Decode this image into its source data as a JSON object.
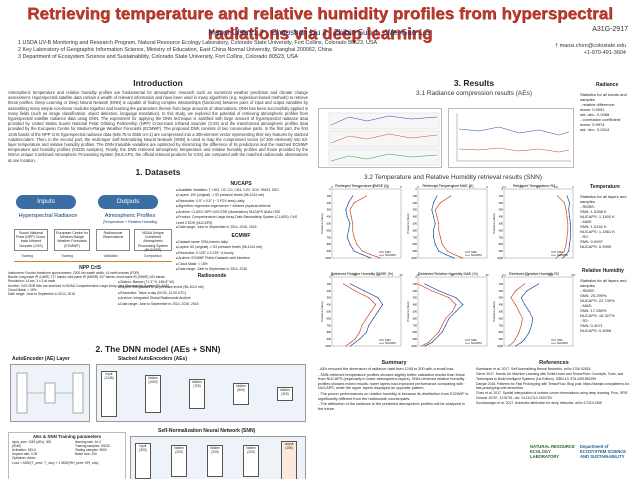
{
  "header": {
    "title": "Retrieving temperature and relative humidity profiles from hyperspectral radiations via deep learning",
    "poster_id": "A31G-2917",
    "authors": "Maosi Chen 1,† , Chaoshun Liu 2 , Zhibin Sun 1 , Wei Gao 1,3",
    "affiliations": [
      "1 USDA UV-B Monitoring and Research Program, Natural Resource Ecology Laboratory, Colorado State University, Fort Collins, Colorado 80523, USA",
      "2 Key Laboratory of Geographic Information Science, Ministry of Education, East China Normal University, Shanghai 200062, China",
      "3 Department of Ecosystem Science and Sustainability, Colorado State University, Fort Collins, Colorado 80523, USA"
    ],
    "contact_email": "† maosi.chen@colostate.edu",
    "contact_phone": "+1-970-491-3604"
  },
  "intro": {
    "title": "Introduction",
    "text": "Atmospheric temperature and relative humidity profiles are fundamental for atmospheric research such as numerical weather prediction and climate change assessment. Hyperspectral satellite data contain a wealth of relevant information and have been used in many algorithms (e.g. regression-based methods) to retrieve these profiles. Deep Learning or Deep Neural Network (DNN) is capable of finding complex relationships (functions) between pairs of input and output variables by assembling many simple non-linear modules together and learning the parameters therein from large amounts of observations. DNN has been successfully applied in many fields (such as image classification, object detection, language translation). In this study, we explored the potential of retrieving atmospheric profiles from hyperspectral satellite radiance data using DNN. The experiment for applying the DNN technique is satisfied with large amount of hyperspectral radiance data provided by United States Suomi National Polar Orbiting Partnership (NPP) Cross-track Infrared Sounder (CrIS) and the transformed atmospheric profiles data provided by the European Centre for Medium-Range Weather Forecasts (ECMWF). The proposed DNN consists of two consecutive parts. In the first part, the first 1245 bands of the NPP CrIS hyperspectral radiance data (648.75 to 2555 cm-1) are compressed into a 300-element vector representing their key features by stacked AutoEncoders. Then, in the second part, the multi-layer Self-Normalizing Neural Network (SNN) is used to map the compressed vector (of 300 elements) into 53-layer temperature and relative humidity profiles. The DNN trainable variables are optimized by minimizing the difference of its predictions and the matched ECMWF temperature and humidity profiles (53230 samples). Finally, the DNN retrieved atmospheric temperature and relative humidity profiles and those provided by the NOAA Unique Combined Atmospheric Processing System (NUCAPS, the official retrieval products for CrIS) are compared with the matched radiosonde observations at one location."
  },
  "datasets": {
    "title": "1. Datasets",
    "inputs_label": "Inputs",
    "outputs_label": "Outputs",
    "hyper_label": "Hyperspectral Radiance",
    "atmos_label": "Atmospheric Profiles",
    "atmos_sub": "(Temperature + Relative Humidity)",
    "boxes": [
      "Suomi National Polar (NPP) Cross-track Infrared Sounder (CrIS)",
      "European Centre for Medium-Range Weather Forecasts (ECMWF)",
      "Radiosonde Observations",
      "NOAA Unique Combined Atmospheric Processing System (NUCAPS)"
    ],
    "flow_labels": [
      "Training",
      "Training",
      "Validation",
      "Comparison"
    ],
    "npp_title": "NPP CrIS",
    "npp_items": [
      "Instrument: Fourier-transform spectrometer; 2200 km swath width; 14 earth scenes (FOR)",
      "Bands: long-wave IR (LWIR) 717 bands; mid-wave IR (MWIR) 437 bands; short-wave IR (SWIR) 163 bands",
      "Resolution: 14 km, 3 x 3 at nadir",
      "Archive: CrIS SDR files are archived in NOAA Comprehensive Large Array-data Stewardship System (CLASS)",
      "Cloud Mask: < 15%",
      "Date range: June to September in 2014, 2015"
    ],
    "nucaps_title": "NUCAPS",
    "nucaps_items": [
      "Available Variables: T, H2O, O3, CO, CH4, CO2, SO2, HNO3, N2O",
      "Layers: 100 (original) -> 53 pressure levels (96-1014 mb)",
      "Resolution: 0.5° x 0.5° (~ 3 FOV area); daily",
      "Algorithm: regression eigenvector + infrared physical retrieval",
      "Archive: CLASS: NPP-CrIS EDR (dissertation) NUCAPS ANALYSIS",
      "Product: Comprehensive Large Array-Data Stewardship System (CLASS): CrIS Level 2 EDR (NUCAPS)",
      "Date range: June to September in 2014, 2015, 2016"
    ],
    "ecmwf_title": "ECMWF",
    "ecmwf_items": [
      "Dataset name: ERA-Interim daily",
      "Layers: 60 (original) -> 53 pressure levels (96-1014 mb)",
      "Resolution: 0.125° x 0.125°; 6-hourly",
      "Archive: ECMWF Public Datasets web interface",
      "Cloud Mask: < 15%",
      "Date range: June to September in 2014, 2015"
    ],
    "radiosonde_title": "Radiosonde",
    "radiosonde_items": [
      "Station: Barrow (71.3° N, 156.8° W)",
      "Layers: interpolated to 53 pressure levels (96-1014 mb)",
      "Resolution: Twice a day (00:00, 12:00 UTC)",
      "Archive: Integrated Global Radiosonde Archive",
      "Date range: June to September in 2014, 2015, 2016"
    ]
  },
  "dnn": {
    "title": "2. The DNN model (AEs + SNN)",
    "ae_title": "AutoEncoder (AE) Layer",
    "sae_title": "Stacked AutoEncoders (AEs)",
    "snn_title": "Self-Normalization Neural Network (SNN)",
    "train_title": "AEs & SNN Training parameters",
    "train_items": [
      "input_size: 1245 (AEs), 300 (SNN)",
      "Activation: SELU",
      "dropout rate: 0.05",
      "Optimizer: Adam",
      "learning rate: 1e-3",
      "Training samples: 53230",
      "Testing samples: 5000",
      "Batch size: 200"
    ],
    "sae_nodes": [
      "input (1245)",
      "hidden (1000)",
      "hidden (700)",
      "hidden (500)",
      "hidden (300)"
    ],
    "snn_nodes": [
      "input (300)",
      "hidden (200)",
      "hidden (200)",
      "hidden (200)",
      "output (106)"
    ],
    "loss_text": "Loss = MSE(T_pred, T_obs) + λ MSE(RH_pred, RH_obs)"
  },
  "results": {
    "title": "3. Results",
    "s31": "3.1 Radiance compression results (AEs)",
    "s32": "3.2 Temperature and Relative Humidity retrieval results (SNN)",
    "radiance_head": "Radiance",
    "radiance_stats": [
      "Statistics for all bands and samples",
      "- relative difference:",
      "  mean: 0.0051",
      "  std. dev.: 0.0068",
      "- correlation coefficient:",
      "  mean: 0.9974",
      "  std. dev.: 0.0014"
    ],
    "temp_head": "Temperature",
    "temp_stats": [
      "Statistics for all layers and samples",
      "- RMSE:",
      "  SNN: 1.5358 K",
      "  NUCAPS: 1.1160 K",
      "- MAE:",
      "  SNN: 1.0162 K",
      "  NUCAPS: 1.1561 K",
      "- R2:",
      "  SNN: 0.9997",
      "  NUCAPS: 0.9990"
    ],
    "rh_head": "Relative Humidity",
    "rh_stats": [
      "Statistics for all layers and samples",
      "- RMSE:",
      "  SNN: 25.299%",
      "  NUCAPS: 22.749%",
      "- MAE:",
      "  SNN: 17.289%",
      "  NUCAPS: 16.327%",
      "- R2:",
      "  SNN: 0.4071",
      "  NUCAPS: 0.3096"
    ],
    "chart_titles": [
      "Retrieved Temperature RMSE (K)",
      "Retrieved Temperature MAE (K)",
      "Retrieved Temperature R2",
      "Retrieved Relative Humidity RMSE (%)",
      "Retrieved Relative Humidity MAE (%)",
      "Retrieved Relative Humidity R2"
    ],
    "ylabel": "Pressure (mbar)",
    "legend_snn": "SNN",
    "legend_nucaps": "NUCAPS"
  },
  "chart_data": [
    {
      "type": "line",
      "title": "Retrieved Temperature RMSE (K)",
      "ylabel": "Pressure (mbar)",
      "yticks": [
        0,
        100,
        200,
        300,
        400,
        500,
        600,
        700,
        800,
        900,
        1000
      ],
      "xticks": [
        0,
        1,
        2,
        3,
        4,
        5
      ],
      "series": [
        {
          "name": "SNN",
          "x": [
            1.5,
            1.2,
            1.0,
            1.1,
            1.3,
            1.2,
            1.1,
            1.3,
            1.6,
            2.2,
            2.8
          ],
          "y": [
            100,
            200,
            300,
            400,
            500,
            600,
            700,
            800,
            900,
            950,
            1000
          ]
        },
        {
          "name": "NUCAPS",
          "x": [
            2.5,
            1.6,
            1.3,
            1.4,
            1.5,
            1.5,
            1.6,
            1.8,
            2.2,
            2.8,
            3.5
          ],
          "y": [
            100,
            200,
            300,
            400,
            500,
            600,
            700,
            800,
            900,
            950,
            1000
          ]
        }
      ]
    },
    {
      "type": "line",
      "title": "Retrieved Temperature MAE (K)",
      "ylabel": "Pressure (mbar)",
      "yticks": [
        0,
        100,
        200,
        300,
        400,
        500,
        600,
        700,
        800,
        900,
        1000
      ],
      "xticks": [
        0,
        1,
        2,
        3,
        4
      ],
      "series": [
        {
          "name": "SNN",
          "x": [
            1.1,
            0.9,
            0.8,
            0.9,
            1.0,
            0.9,
            0.9,
            1.0,
            1.2,
            1.6,
            2.1
          ],
          "y": [
            100,
            200,
            300,
            400,
            500,
            600,
            700,
            800,
            900,
            950,
            1000
          ]
        },
        {
          "name": "NUCAPS",
          "x": [
            1.9,
            1.3,
            1.0,
            1.1,
            1.2,
            1.2,
            1.3,
            1.4,
            1.7,
            2.1,
            2.6
          ],
          "y": [
            100,
            200,
            300,
            400,
            500,
            600,
            700,
            800,
            900,
            950,
            1000
          ]
        }
      ]
    },
    {
      "type": "line",
      "title": "Retrieved Temperature R2",
      "ylabel": "Pressure (mbar)",
      "yticks": [
        0,
        100,
        200,
        300,
        400,
        500,
        600,
        700,
        800,
        900,
        1000
      ],
      "xticks": [
        0.2,
        0.4,
        0.6,
        0.8,
        1.0
      ],
      "series": [
        {
          "name": "SNN",
          "x": [
            0.93,
            0.96,
            0.95,
            0.96,
            0.97,
            0.97,
            0.97,
            0.96,
            0.95,
            0.92,
            0.88
          ],
          "y": [
            100,
            200,
            300,
            400,
            500,
            600,
            700,
            800,
            900,
            950,
            1000
          ]
        },
        {
          "name": "NUCAPS",
          "x": [
            0.82,
            0.9,
            0.92,
            0.93,
            0.94,
            0.94,
            0.93,
            0.92,
            0.9,
            0.86,
            0.8
          ],
          "y": [
            100,
            200,
            300,
            400,
            500,
            600,
            700,
            800,
            900,
            950,
            1000
          ]
        }
      ]
    },
    {
      "type": "line",
      "title": "Retrieved Relative Humidity RMSE (%)",
      "ylabel": "Pressure (mbar)",
      "yticks": [
        0,
        100,
        200,
        300,
        400,
        500,
        600,
        700,
        800,
        900,
        1000
      ],
      "xticks": [
        10,
        20,
        30,
        40
      ],
      "series": [
        {
          "name": "SNN",
          "x": [
            18,
            24,
            30,
            32,
            30,
            28,
            26,
            25,
            22,
            20,
            18
          ],
          "y": [
            100,
            200,
            300,
            400,
            500,
            600,
            700,
            800,
            900,
            950,
            1000
          ]
        },
        {
          "name": "NUCAPS",
          "x": [
            15,
            20,
            26,
            29,
            27,
            25,
            23,
            22,
            20,
            18,
            16
          ],
          "y": [
            100,
            200,
            300,
            400,
            500,
            600,
            700,
            800,
            900,
            950,
            1000
          ]
        }
      ]
    },
    {
      "type": "line",
      "title": "Retrieved Relative Humidity MAE (%)",
      "ylabel": "Pressure (mbar)",
      "yticks": [
        0,
        100,
        200,
        300,
        400,
        500,
        600,
        700,
        800,
        900,
        1000
      ],
      "xticks": [
        10,
        20,
        30
      ],
      "series": [
        {
          "name": "SNN",
          "x": [
            12,
            16,
            21,
            23,
            21,
            19,
            18,
            17,
            15,
            14,
            12
          ],
          "y": [
            100,
            200,
            300,
            400,
            500,
            600,
            700,
            800,
            900,
            950,
            1000
          ]
        },
        {
          "name": "NUCAPS",
          "x": [
            10,
            14,
            19,
            21,
            20,
            18,
            17,
            16,
            14,
            13,
            11
          ],
          "y": [
            100,
            200,
            300,
            400,
            500,
            600,
            700,
            800,
            900,
            950,
            1000
          ]
        }
      ]
    },
    {
      "type": "line",
      "title": "Retrieved Relative Humidity R2",
      "ylabel": "Pressure (mbar)",
      "yticks": [
        0,
        100,
        200,
        300,
        400,
        500,
        600,
        700,
        800,
        900,
        1000
      ],
      "xticks": [
        0.2,
        0.4,
        0.6,
        0.8
      ],
      "series": [
        {
          "name": "SNN",
          "x": [
            0.5,
            0.4,
            0.35,
            0.38,
            0.42,
            0.45,
            0.44,
            0.42,
            0.38,
            0.35,
            0.3
          ],
          "y": [
            100,
            200,
            300,
            400,
            500,
            600,
            700,
            800,
            900,
            950,
            1000
          ]
        },
        {
          "name": "NUCAPS",
          "x": [
            0.38,
            0.3,
            0.26,
            0.3,
            0.33,
            0.36,
            0.35,
            0.33,
            0.3,
            0.28,
            0.24
          ],
          "y": [
            100,
            200,
            300,
            400,
            500,
            600,
            700,
            800,
            900,
            950,
            1000
          ]
        }
      ]
    }
  ],
  "summary": {
    "title": "Summary",
    "items": [
      "AEs reduced the dimension of radiance data from 1245 to 300 with a small loss.",
      "SNN-retrieved temperature profiles showed slightly better validation results than those from NUCAPS (especially in lower atmospheric layers). SNN-retrieved relative humidity profiles showed mixed results: lower layers had improved performance comparing with NUCAPS, while the upper layers displayed an opposite pattern.",
      "The poorer performances on relative humidity is because its distribution from ECMWF is significantly different from the radiosonde counterparts.",
      "The attribution of the radiance to the predicted atmospheric profiles will be analyzed in the future."
    ]
  },
  "references": {
    "title": "References",
    "items": [
      "Klambauer et al. 2017. Self-Normalizing Neural Networks. arXiv 1706.02515.",
      "Géron 2017. Hands-On Machine Learning with Scikit-Learn and TensorFlow: Concepts, Tools, and Techniques to Build Intelligent Systems (1st Edition). ISBN-13: 978-1491962299",
      "Danijar 2018. Patterns for Fast Prototyping with TensorFlow. Blog post: https://danijar.com/patterns-for-fast-prototyping-with-tensorflow",
      "Chen et al. 2017. Spatial interpolation of surface ozone observations using deep learning. Proc. SPIE Volume 10767, 1076701. doi: 10.1117/12.2320753",
      "Sundararajan et al. 2017. Axiomatic attribution for deep networks. arXiv:1703.01365"
    ]
  },
  "logos": {
    "nrel": "NATURAL RESOURCE ECOLOGY LABORATORY",
    "ess": "Department of ECOSYSTEM SCIENCE AND SUSTAINABILITY"
  },
  "colors": {
    "title": "#c0392b",
    "accent": "#3a6ea5",
    "snn": "#1f4e9e",
    "nucaps": "#d04a2a"
  }
}
